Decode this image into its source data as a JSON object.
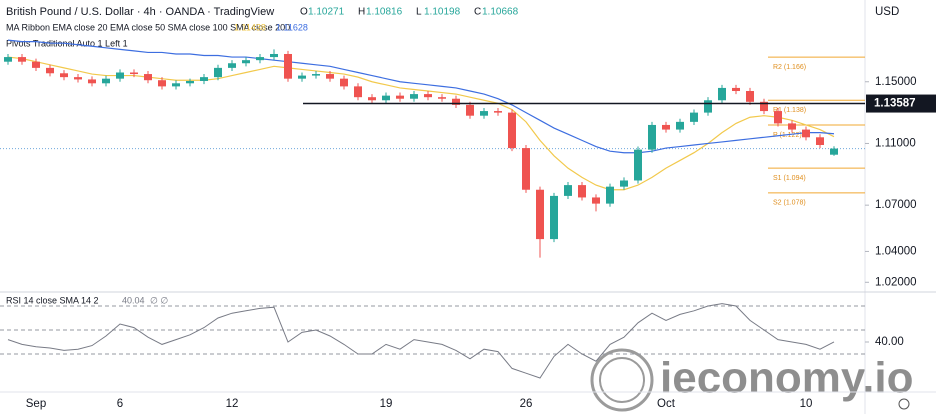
{
  "header": {
    "title": "British Pound / U.S. Dollar · 4h · OANDA · TradingView",
    "currency": "USD",
    "watermark": "ieconomy.io"
  },
  "chart_data": {
    "type": "candlestick",
    "ohlc_labels": [
      "O",
      "H",
      "L",
      "C"
    ],
    "categories": [
      null,
      null,
      "Sep",
      null,
      null,
      null,
      null,
      null,
      "6",
      null,
      null,
      null,
      null,
      null,
      null,
      null,
      "12",
      null,
      null,
      null,
      null,
      null,
      null,
      null,
      null,
      null,
      null,
      "19",
      null,
      null,
      null,
      null,
      null,
      null,
      null,
      null,
      null,
      "26",
      null,
      null,
      null,
      null,
      null,
      null,
      null,
      null,
      null,
      "Oct",
      null,
      null,
      null,
      null,
      null,
      null,
      null,
      null,
      null,
      "10",
      null,
      null
    ],
    "open": [
      1.163,
      1.166,
      1.163,
      1.159,
      1.1555,
      1.153,
      1.1515,
      1.149,
      1.152,
      1.156,
      1.155,
      1.151,
      1.147,
      1.149,
      1.1505,
      1.153,
      1.159,
      1.162,
      1.164,
      1.166,
      1.168,
      1.152,
      1.154,
      1.155,
      1.152,
      1.147,
      1.14,
      1.138,
      1.141,
      1.139,
      1.142,
      1.14,
      1.139,
      1.135,
      1.128,
      1.131,
      1.13,
      1.107,
      1.08,
      1.048,
      1.076,
      1.083,
      1.075,
      1.071,
      1.082,
      1.086,
      1.106,
      1.122,
      1.119,
      1.124,
      1.13,
      1.138,
      1.146,
      1.144,
      1.137,
      1.131,
      1.123,
      1.119,
      1.114,
      1.10271
    ],
    "high": [
      1.168,
      1.168,
      1.165,
      1.161,
      1.1575,
      1.155,
      1.1535,
      1.154,
      1.158,
      1.158,
      1.157,
      1.153,
      1.151,
      1.152,
      1.155,
      1.161,
      1.164,
      1.166,
      1.168,
      1.171,
      1.17,
      1.156,
      1.157,
      1.157,
      1.154,
      1.149,
      1.142,
      1.143,
      1.143,
      1.144,
      1.144,
      1.142,
      1.141,
      1.137,
      1.133,
      1.133,
      1.132,
      1.109,
      1.082,
      1.078,
      1.085,
      1.085,
      1.077,
      1.084,
      1.088,
      1.108,
      1.124,
      1.124,
      1.126,
      1.132,
      1.14,
      1.148,
      1.148,
      1.146,
      1.139,
      1.133,
      1.125,
      1.121,
      1.116,
      1.10816
    ],
    "low": [
      1.161,
      1.161,
      1.157,
      1.1535,
      1.151,
      1.1495,
      1.147,
      1.147,
      1.15,
      1.153,
      1.149,
      1.145,
      1.145,
      1.147,
      1.1485,
      1.151,
      1.157,
      1.16,
      1.162,
      1.164,
      1.15,
      1.15,
      1.152,
      1.15,
      1.145,
      1.138,
      1.136,
      1.136,
      1.137,
      1.137,
      1.138,
      1.137,
      1.133,
      1.126,
      1.126,
      1.128,
      1.105,
      1.078,
      1.036,
      1.046,
      1.074,
      1.073,
      1.066,
      1.069,
      1.08,
      1.084,
      1.104,
      1.117,
      1.117,
      1.122,
      1.128,
      1.136,
      1.142,
      1.135,
      1.129,
      1.121,
      1.117,
      1.112,
      1.107,
      1.10198
    ],
    "close": [
      1.166,
      1.163,
      1.159,
      1.1555,
      1.153,
      1.1515,
      1.149,
      1.152,
      1.156,
      1.155,
      1.151,
      1.147,
      1.149,
      1.1505,
      1.153,
      1.159,
      1.162,
      1.164,
      1.166,
      1.168,
      1.152,
      1.154,
      1.155,
      1.152,
      1.147,
      1.14,
      1.138,
      1.141,
      1.139,
      1.142,
      1.14,
      1.139,
      1.135,
      1.128,
      1.131,
      1.13,
      1.107,
      1.08,
      1.048,
      1.076,
      1.083,
      1.075,
      1.071,
      1.082,
      1.086,
      1.106,
      1.122,
      1.119,
      1.124,
      1.13,
      1.138,
      1.146,
      1.144,
      1.137,
      1.131,
      1.123,
      1.119,
      1.114,
      1.109,
      1.10668
    ],
    "up_color": "#26a69a",
    "down_color": "#ef5350",
    "ma_legend": "MA Ribbon EMA close 20 EMA close 50 SMA close 100 SMA close 200",
    "series": [
      {
        "color": "#f2c94c",
        "values": [
          1.166,
          1.165,
          1.163,
          1.161,
          1.159,
          1.157,
          1.155,
          1.154,
          1.154,
          1.154,
          1.153,
          1.152,
          1.151,
          1.151,
          1.151,
          1.152,
          1.154,
          1.156,
          1.158,
          1.16,
          1.159,
          1.158,
          1.157,
          1.156,
          1.155,
          1.153,
          1.15,
          1.148,
          1.146,
          1.145,
          1.144,
          1.143,
          1.142,
          1.14,
          1.138,
          1.136,
          1.132,
          1.124,
          1.112,
          1.102,
          1.094,
          1.088,
          1.083,
          1.08,
          1.08,
          1.083,
          1.088,
          1.094,
          1.099,
          1.104,
          1.11,
          1.117,
          1.123,
          1.127,
          1.128,
          1.127,
          1.125,
          1.122,
          1.119,
          1.11438
        ]
      },
      {
        "color": "#3d6ee0",
        "values": [
          1.177,
          1.176,
          1.176,
          1.175,
          1.175,
          1.174,
          1.173,
          1.172,
          1.171,
          1.17,
          1.169,
          1.169,
          1.168,
          1.168,
          1.167,
          1.167,
          1.166,
          1.166,
          1.165,
          1.164,
          1.163,
          1.162,
          1.161,
          1.16,
          1.158,
          1.156,
          1.154,
          1.152,
          1.15,
          1.149,
          1.148,
          1.147,
          1.146,
          1.144,
          1.142,
          1.139,
          1.135,
          1.13,
          1.125,
          1.12,
          1.116,
          1.112,
          1.108,
          1.105,
          1.104,
          1.104,
          1.105,
          1.107,
          1.108,
          1.109,
          1.11,
          1.111,
          1.112,
          1.113,
          1.114,
          1.115,
          1.116,
          1.117,
          1.117,
          1.11628
        ]
      }
    ],
    "pivot_legend": "Pivots Traditional Auto 1 Left 1",
    "pivots": [
      {
        "value": 1.166,
        "label": "R2 (1.166)"
      },
      {
        "value": 1.138,
        "label": "R1 (1.138)"
      },
      {
        "value": 1.122,
        "label": "P (1.122)"
      },
      {
        "value": 1.094,
        "label": "S1 (1.094)"
      },
      {
        "value": 1.078,
        "label": "S2 (1.078)"
      }
    ],
    "hline": 1.13587,
    "ylim": [
      1.015,
      1.203
    ],
    "yticks": [
      {
        "value": 1.15,
        "label": "1.15000"
      },
      {
        "value": 1.11,
        "label": "1.11000"
      },
      {
        "value": 1.07,
        "label": "1.07000"
      },
      {
        "value": 1.04,
        "label": "1.04000"
      },
      {
        "value": 1.02,
        "label": "1.02000"
      }
    ],
    "rsi": {
      "legend": "RSI 14 close SMA 14 2",
      "na": "∅ ∅",
      "color": "#787b86",
      "values": [
        42,
        38,
        36,
        35,
        33,
        34,
        37,
        45,
        55,
        52,
        44,
        38,
        42,
        46,
        52,
        60,
        64,
        66,
        68,
        69,
        40,
        48,
        50,
        45,
        38,
        30,
        30,
        38,
        34,
        42,
        40,
        38,
        33,
        26,
        34,
        32,
        18,
        14,
        10,
        28,
        38,
        30,
        24,
        38,
        44,
        56,
        64,
        58,
        63,
        66,
        70,
        72,
        70,
        58,
        50,
        42,
        40,
        38,
        34,
        40.04
      ],
      "ylim": [
        0,
        80
      ],
      "levels": [
        70,
        50,
        30
      ],
      "yticks": [
        {
          "value": 40,
          "label": "40.00"
        }
      ]
    }
  }
}
